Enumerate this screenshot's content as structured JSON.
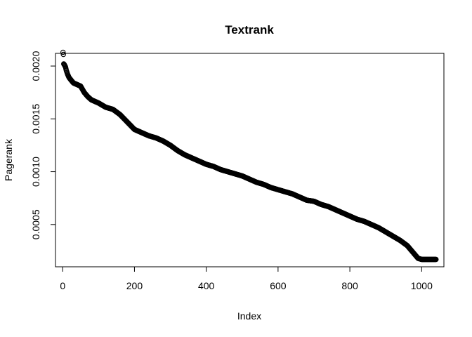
{
  "chart_data": {
    "type": "scatter",
    "title": "Textrank",
    "xlabel": "Index",
    "ylabel": "Pagerank",
    "xlim": [
      -20,
      1062
    ],
    "ylim": [
      0.0001,
      0.00212
    ],
    "x_ticks": [
      0,
      200,
      400,
      600,
      800,
      1000
    ],
    "x_tick_labels": [
      "0",
      "200",
      "400",
      "600",
      "800",
      "1000"
    ],
    "y_ticks": [
      0.0005,
      0.001,
      0.0015,
      0.002
    ],
    "y_tick_labels": [
      "0.0005",
      "0.0010",
      "0.0015",
      "0.0020"
    ],
    "grid": false,
    "legend": "none",
    "marker": "open-circle",
    "marker_color": "#000000",
    "n_points": 1040,
    "series": [
      {
        "x": [
          1,
          2,
          3,
          5,
          8,
          10,
          14,
          18,
          25,
          30,
          50,
          60,
          70,
          80,
          100,
          120,
          140,
          160,
          180,
          200,
          220,
          240,
          260,
          280,
          300,
          320,
          340,
          360,
          380,
          400,
          420,
          440,
          460,
          480,
          500,
          520,
          540,
          560,
          580,
          600,
          620,
          640,
          660,
          680,
          700,
          720,
          740,
          760,
          780,
          800,
          820,
          840,
          860,
          880,
          900,
          920,
          940,
          960,
          980,
          990,
          1000,
          1020,
          1040
        ],
        "y": [
          0.00213,
          0.00211,
          0.00202,
          0.00201,
          0.00199,
          0.00196,
          0.00192,
          0.00189,
          0.00186,
          0.00184,
          0.00181,
          0.00175,
          0.00171,
          0.00168,
          0.00165,
          0.00161,
          0.00159,
          0.00154,
          0.00147,
          0.0014,
          0.00137,
          0.00134,
          0.00132,
          0.00129,
          0.00125,
          0.0012,
          0.00116,
          0.00113,
          0.0011,
          0.00107,
          0.00105,
          0.00102,
          0.001,
          0.00098,
          0.00096,
          0.00093,
          0.0009,
          0.00088,
          0.00085,
          0.00083,
          0.00081,
          0.00079,
          0.00076,
          0.00073,
          0.00072,
          0.00069,
          0.00067,
          0.00064,
          0.00061,
          0.00058,
          0.00055,
          0.00053,
          0.0005,
          0.00047,
          0.00043,
          0.00039,
          0.00035,
          0.0003,
          0.00022,
          0.00018,
          0.00017,
          0.00017,
          0.00017
        ]
      }
    ]
  }
}
